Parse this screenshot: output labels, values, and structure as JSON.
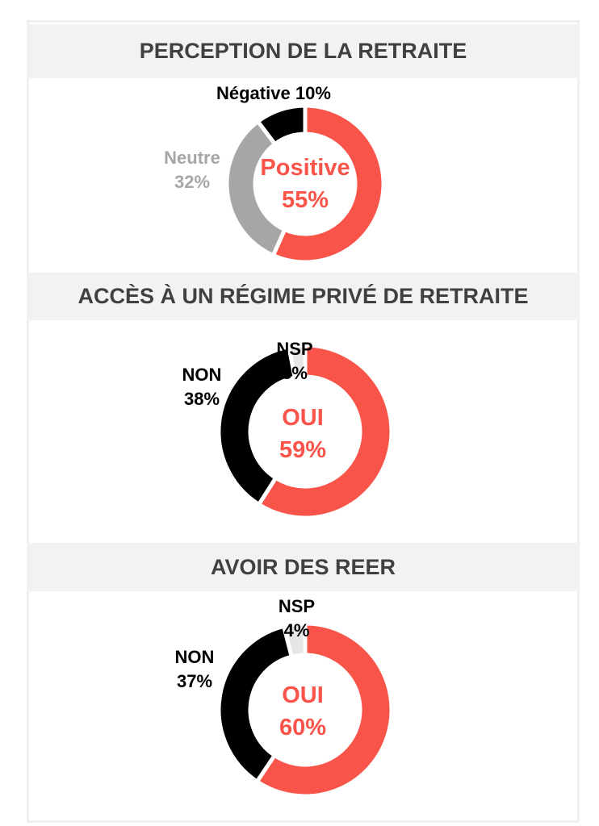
{
  "colors": {
    "red": "#f9544a",
    "gray": "#a6a6a6",
    "black": "#000000",
    "light": "#e6e6e6"
  },
  "chart_data": [
    {
      "type": "pie",
      "title": "PERCEPTION DE LA RETRAITE",
      "slices": [
        {
          "label": "Positive",
          "value": 55,
          "display": "55%",
          "color": "#f9544a"
        },
        {
          "label": "Neutre",
          "value": 32,
          "display": "32%",
          "color": "#a6a6a6"
        },
        {
          "label": "Négative",
          "value": 10,
          "display": "10%",
          "color": "#000000"
        }
      ]
    },
    {
      "type": "pie",
      "title": "ACCÈS À UN RÉGIME PRIVÉ DE RETRAITE",
      "slices": [
        {
          "label": "OUI",
          "value": 59,
          "display": "59%",
          "color": "#f9544a"
        },
        {
          "label": "NON",
          "value": 38,
          "display": "38%",
          "color": "#000000"
        },
        {
          "label": "NSP",
          "value": 3,
          "display": "3%",
          "color": "#e6e6e6"
        }
      ]
    },
    {
      "type": "pie",
      "title": "AVOIR DES REER",
      "slices": [
        {
          "label": "OUI",
          "value": 60,
          "display": "60%",
          "color": "#f9544a"
        },
        {
          "label": "NON",
          "value": 37,
          "display": "37%",
          "color": "#000000"
        },
        {
          "label": "NSP",
          "value": 4,
          "display": "4%",
          "color": "#e6e6e6"
        }
      ]
    }
  ]
}
